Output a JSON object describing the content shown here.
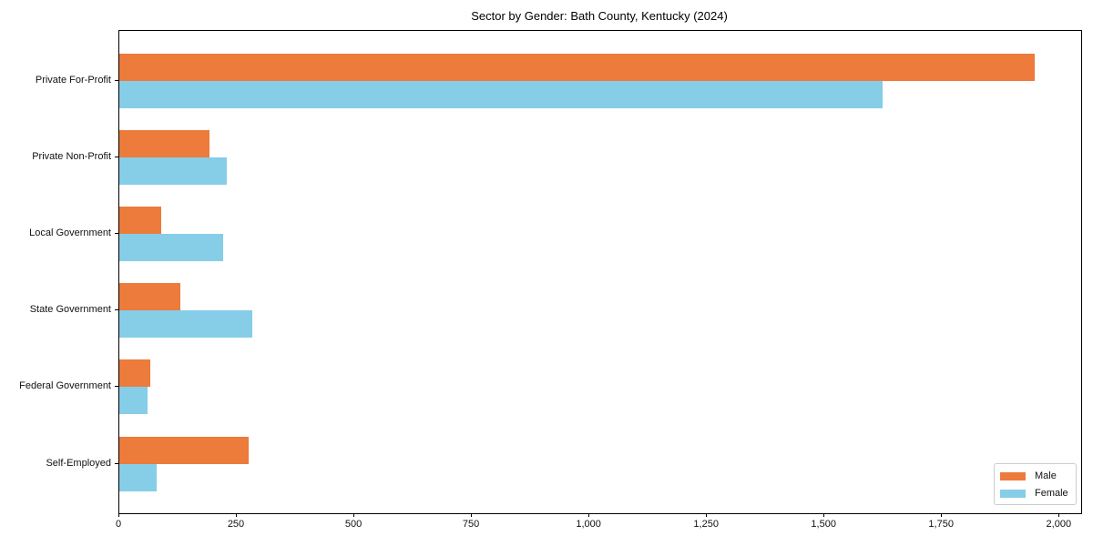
{
  "chart_data": {
    "type": "bar",
    "orientation": "horizontal",
    "title": "Sector by Gender: Bath County, Kentucky (2024)",
    "xlabel": "",
    "ylabel": "",
    "categories": [
      "Private For-Profit",
      "Private Non-Profit",
      "Local Government",
      "State Government",
      "Federal Government",
      "Self-Employed"
    ],
    "series": [
      {
        "name": "Male",
        "color": "#EC7B3C",
        "values": [
          1948,
          192,
          89,
          129,
          65,
          275
        ]
      },
      {
        "name": "Female",
        "color": "#86CDE8",
        "values": [
          1624,
          229,
          221,
          283,
          59,
          79
        ]
      }
    ],
    "xlim": [
      0,
      2046
    ],
    "x_ticks": [
      0,
      250,
      500,
      750,
      1000,
      1250,
      1500,
      1750,
      2000
    ],
    "x_tick_labels": [
      "0",
      "250",
      "500",
      "750",
      "1,000",
      "1,250",
      "1,500",
      "1,750",
      "2,000"
    ],
    "grid": false,
    "legend_position": "lower right",
    "colors": {
      "axis": "#000000",
      "text": "#111111",
      "legend_border": "#cccccc",
      "background": "#ffffff"
    }
  }
}
